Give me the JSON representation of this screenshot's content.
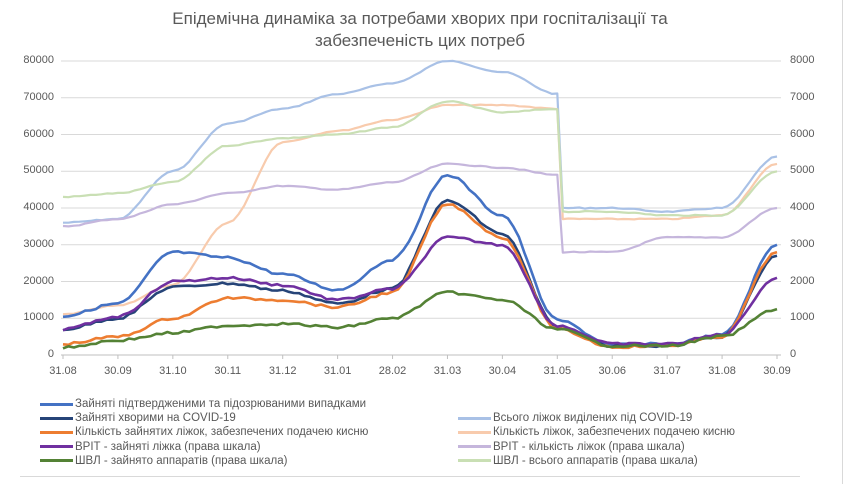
{
  "chart_data": {
    "type": "line",
    "title": "Епідемічна динаміка за потребами хворих при госпіталізації та забезпеченість цих потреб",
    "title_lines": [
      "Епідемічна динаміка за потребами хворих при госпіталізації та",
      "забезпеченість цих потреб"
    ],
    "xlabel": "",
    "ylabel": "",
    "ylim": [
      0,
      80000
    ],
    "y2lim": [
      0,
      8000
    ],
    "y_ticks": [
      "0",
      "10000",
      "20000",
      "30000",
      "40000",
      "50000",
      "60000",
      "70000",
      "80000"
    ],
    "y2_ticks": [
      "0",
      "1000",
      "2000",
      "3000",
      "4000",
      "5000",
      "6000",
      "7000",
      "8000"
    ],
    "categories": [
      "31.08",
      "30.09",
      "31.10",
      "30.11",
      "31.12",
      "31.01",
      "28.02",
      "31.03",
      "30.04",
      "31.05",
      "30.06",
      "31.07",
      "31.08",
      "30.09"
    ],
    "grid": true,
    "legend_position": "bottom",
    "series": [
      {
        "name": "Зайняті підтвердженими та підозрюваними випадками",
        "axis": "left",
        "color": "#4472c4",
        "width": 2.6,
        "values": [
          10600,
          14000,
          28000,
          26500,
          22000,
          17700,
          26000,
          49000,
          38000,
          9500,
          2800,
          3000,
          5500,
          30000
        ]
      },
      {
        "name": "Зайняті хворими на COVID-19",
        "axis": "left",
        "color": "#264478",
        "width": 2.6,
        "values": [
          7000,
          10000,
          18500,
          19500,
          17500,
          14000,
          18000,
          42000,
          33000,
          7500,
          2500,
          2500,
          5000,
          27000
        ]
      },
      {
        "name": "Кількість зайнятих ліжок, забезпечених подачею кисню",
        "axis": "left",
        "color": "#ed7d31",
        "width": 2.6,
        "values": [
          3000,
          5000,
          10000,
          15500,
          15000,
          13000,
          17000,
          41000,
          32000,
          7000,
          2200,
          2500,
          5000,
          28000
        ]
      },
      {
        "name": "ВРІТ - зайняті ліжка (права шкала)",
        "axis": "right",
        "color": "#7030a0",
        "width": 2.6,
        "values": [
          700,
          1050,
          2000,
          2100,
          1900,
          1500,
          1800,
          3200,
          3000,
          800,
          300,
          300,
          550,
          2100
        ]
      },
      {
        "name": "ШВЛ - зайнято аппаратів (права шкала)",
        "axis": "right",
        "color": "#548235",
        "width": 2.6,
        "values": [
          200,
          400,
          600,
          800,
          850,
          750,
          1000,
          1700,
          1500,
          700,
          250,
          250,
          500,
          1250
        ]
      },
      {
        "name": "Всього ліжок виділених під COVID-19",
        "axis": "left",
        "color": "#a9c1e6",
        "width": 2.2,
        "values": [
          36000,
          37000,
          50000,
          63000,
          67000,
          71000,
          74000,
          80000,
          77000,
          71000,
          40000,
          39000,
          40000,
          54000
        ]
      },
      {
        "name": "Кількість ліжок, забезпечених подачею кисню",
        "axis": "left",
        "color": "#f8cbad",
        "width": 2.2,
        "values": [
          11000,
          13500,
          19000,
          36000,
          58000,
          61000,
          64000,
          68000,
          68000,
          67000,
          37000,
          37000,
          38000,
          52000
        ]
      },
      {
        "name": "ВРІТ - кількість ліжок (права шкала)",
        "axis": "right",
        "color": "#c5b6dc",
        "width": 2.2,
        "values": [
          3500,
          3700,
          4100,
          4400,
          4600,
          4500,
          4700,
          5200,
          5100,
          4900,
          2800,
          3200,
          3200,
          4000
        ]
      },
      {
        "name": "ШВЛ - всього аппаратів (права шкала)",
        "axis": "right",
        "color": "#c9dfb4",
        "width": 2.2,
        "values": [
          4300,
          4400,
          4700,
          5700,
          5900,
          6000,
          6200,
          6900,
          6600,
          6700,
          3900,
          3800,
          3800,
          5000
        ]
      }
    ]
  },
  "legend": {
    "left": [
      {
        "label": "Зайняті підтвердженими та підозрюваними випадками",
        "color": "#4472c4"
      },
      {
        "label": "Зайняті хворими на COVID-19",
        "color": "#264478"
      },
      {
        "label": "Кількість зайнятих ліжок, забезпечених подачею кисню",
        "color": "#ed7d31"
      },
      {
        "label": "ВРІТ - зайняті ліжка (права шкала)",
        "color": "#7030a0"
      },
      {
        "label": "ШВЛ - зайнято аппаратів (права шкала)",
        "color": "#548235"
      }
    ],
    "right": [
      {
        "label": "Всього ліжок виділених під COVID-19",
        "color": "#a9c1e6"
      },
      {
        "label": "Кількість ліжок, забезпечених подачею кисню",
        "color": "#f8cbad"
      },
      {
        "label": "ВРІТ - кількість ліжок (права шкала)",
        "color": "#c5b6dc"
      },
      {
        "label": "ШВЛ - всього аппаратів (права шкала)",
        "color": "#c9dfb4"
      }
    ]
  }
}
